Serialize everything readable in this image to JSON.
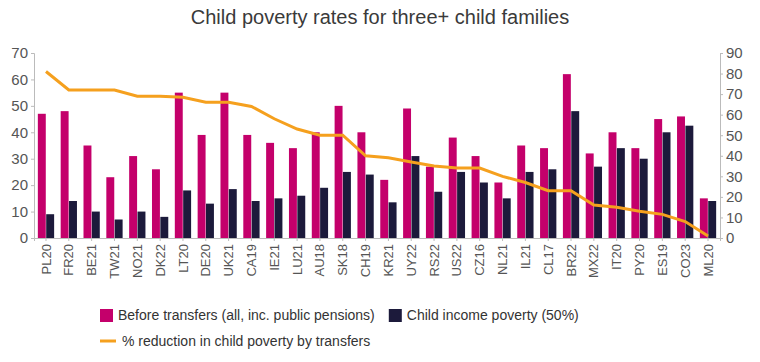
{
  "chart_data": {
    "type": "bar",
    "title": "Child poverty rates for three+ child families",
    "categories": [
      "PL20",
      "FR20",
      "BE21",
      "TW21",
      "NO21",
      "DK22",
      "LT20",
      "DE20",
      "UK21",
      "CA19",
      "IE21",
      "LU21",
      "AU18",
      "SK18",
      "CH19",
      "KR21",
      "UY22",
      "RS22",
      "US22",
      "CZ16",
      "NL21",
      "IL21",
      "CL17",
      "BR22",
      "MX22",
      "IT20",
      "PY20",
      "ES19",
      "CO23",
      "ML20"
    ],
    "series": [
      {
        "name": "Before transfers (all, inc. public pensions)",
        "color": "#c4006b",
        "type": "bar",
        "values": [
          47,
          48,
          35,
          23,
          31,
          26,
          55,
          39,
          55,
          39,
          36,
          34,
          40,
          50,
          40,
          22,
          49,
          27,
          38,
          31,
          21,
          35,
          34,
          62,
          32,
          40,
          34,
          45,
          46,
          15
        ]
      },
      {
        "name": "Child income poverty (50%)",
        "color": "#1c1a3b",
        "type": "bar",
        "values": [
          9,
          14,
          10,
          7,
          10,
          8,
          18,
          13,
          18.5,
          14,
          15,
          16,
          19,
          25,
          24,
          13.5,
          31,
          17.5,
          25,
          21,
          15,
          25,
          26,
          48,
          27,
          34,
          30,
          40,
          42.5,
          14
        ]
      },
      {
        "name": "% reduction in child poverty by transfers",
        "color": "#f5a01e",
        "type": "line",
        "axis": "y2",
        "values": [
          81,
          72,
          72,
          72,
          69,
          69,
          68.5,
          66,
          66,
          64,
          58,
          53,
          50,
          50,
          40,
          39,
          37,
          35,
          34,
          34,
          30,
          27,
          23,
          23,
          16,
          15,
          13,
          11.5,
          8,
          1
        ]
      }
    ],
    "ylim": [
      0,
      70
    ],
    "yticks": [
      0,
      10,
      20,
      30,
      40,
      50,
      60,
      70
    ],
    "y2lim": [
      0,
      90
    ],
    "y2ticks": [
      0,
      10,
      20,
      30,
      40,
      50,
      60,
      70,
      80,
      90
    ],
    "grid": false,
    "legend": "bottom"
  }
}
